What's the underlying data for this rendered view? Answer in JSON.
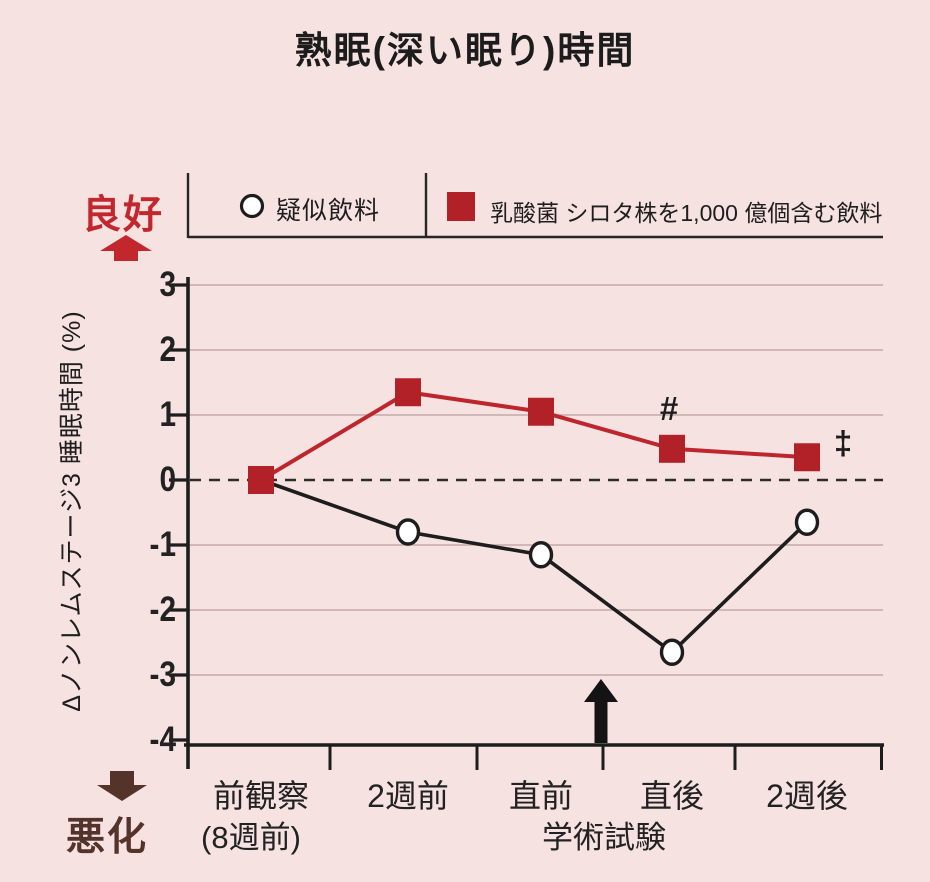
{
  "title": "熟眠(深い眠り)時間",
  "direction_labels": {
    "good": "良好",
    "bad": "悪化"
  },
  "colors": {
    "background": "#f7e2e2",
    "accent_red": "#c1272d",
    "marker_red": "#b22127",
    "line_red": "#bd262c",
    "dark_brown": "#54332a",
    "text_black": "#1e1e1e",
    "grid": "rgba(146,114,114,0.5)"
  },
  "chart_data": {
    "type": "line",
    "title": "熟眠(深い眠り)時間",
    "ylabel": "Δノンレムステージ3 睡眠時間 (%)",
    "ylim": [
      -4,
      3
    ],
    "y_ticks": [
      3,
      2,
      1,
      0,
      -1,
      -2,
      -3,
      -4
    ],
    "y_tick_labels": [
      "3",
      "2",
      "1",
      "0",
      "-1",
      "-2",
      "-3",
      "-4"
    ],
    "x_labels": [
      {
        "line1": "前観察",
        "line2": "(8週前)"
      },
      {
        "line1": "2週前"
      },
      {
        "line1": "直前"
      },
      {
        "line1": "直後"
      },
      {
        "line1": "2週後"
      }
    ],
    "x_axis_sublabel": "学術試験",
    "zero_line_style": "dashed",
    "grid": "horizontal-light",
    "legend_position": "top",
    "series": [
      {
        "name": "疑似飲料",
        "marker": "open-circle",
        "color": "#1d1d1d",
        "values": [
          0,
          -0.8,
          -1.15,
          -2.65,
          -0.65
        ]
      },
      {
        "name": "乳酸菌 シロタ株を1,000 億個含む飲料",
        "marker": "filled-square",
        "color": "#b22127",
        "values": [
          0,
          1.35,
          1.05,
          0.48,
          0.35
        ]
      }
    ],
    "annotations": [
      {
        "symbol": "#",
        "series": 1,
        "point_index": 3,
        "position": "above"
      },
      {
        "symbol": "‡",
        "series": 1,
        "point_index": 4,
        "position": "right"
      }
    ],
    "event_arrow": {
      "between": [
        "直前",
        "直後"
      ],
      "label": "学術試験"
    }
  }
}
